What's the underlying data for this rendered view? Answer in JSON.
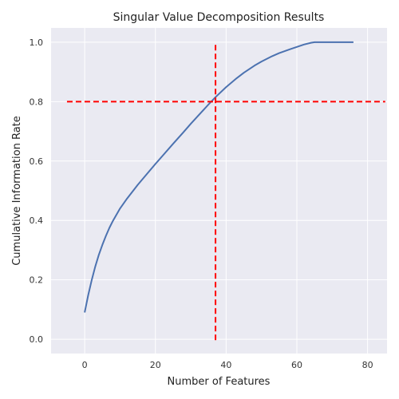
{
  "chart_data": {
    "type": "line",
    "title": "Singular Value Decomposition Results",
    "xlabel": "Number of Features",
    "ylabel": "Cumulative Information Rate",
    "xlim": [
      -9.5,
      85.5
    ],
    "ylim": [
      -0.048,
      1.048
    ],
    "xticks": [
      0,
      20,
      40,
      60,
      80
    ],
    "yticks": [
      0.0,
      0.2,
      0.4,
      0.6,
      0.8,
      1.0
    ],
    "xtick_labels": [
      "0",
      "20",
      "40",
      "60",
      "80"
    ],
    "ytick_labels": [
      "0.0",
      "0.2",
      "0.4",
      "0.6",
      "0.8",
      "1.0"
    ],
    "grid": true,
    "background": "#eaeaf2",
    "grid_color": "#ffffff",
    "series": [
      {
        "color": "#4c72b0",
        "x": [
          0,
          1,
          2,
          3,
          4,
          5,
          6,
          7,
          8,
          10,
          12,
          15,
          18,
          20,
          22,
          25,
          28,
          30,
          33,
          35,
          37,
          40,
          43,
          45,
          48,
          50,
          53,
          55,
          58,
          60,
          62,
          64,
          65,
          66,
          68,
          70,
          72,
          74,
          76
        ],
        "y": [
          0.09,
          0.148,
          0.2,
          0.245,
          0.284,
          0.318,
          0.348,
          0.375,
          0.399,
          0.44,
          0.474,
          0.52,
          0.562,
          0.59,
          0.617,
          0.658,
          0.698,
          0.725,
          0.764,
          0.79,
          0.815,
          0.849,
          0.879,
          0.897,
          0.921,
          0.935,
          0.953,
          0.963,
          0.976,
          0.984,
          0.992,
          0.998,
          1.0,
          1.0,
          1.0,
          1.0,
          1.0,
          1.0,
          1.0
        ]
      }
    ],
    "reference_lines": [
      {
        "orientation": "horizontal",
        "value": 0.8,
        "from": -5,
        "to": 85,
        "color": "#ff0000",
        "style": "dashed"
      },
      {
        "orientation": "vertical",
        "value": 37,
        "from": -0.003,
        "to": 1.0,
        "color": "#ff0000",
        "style": "dashed"
      }
    ]
  }
}
